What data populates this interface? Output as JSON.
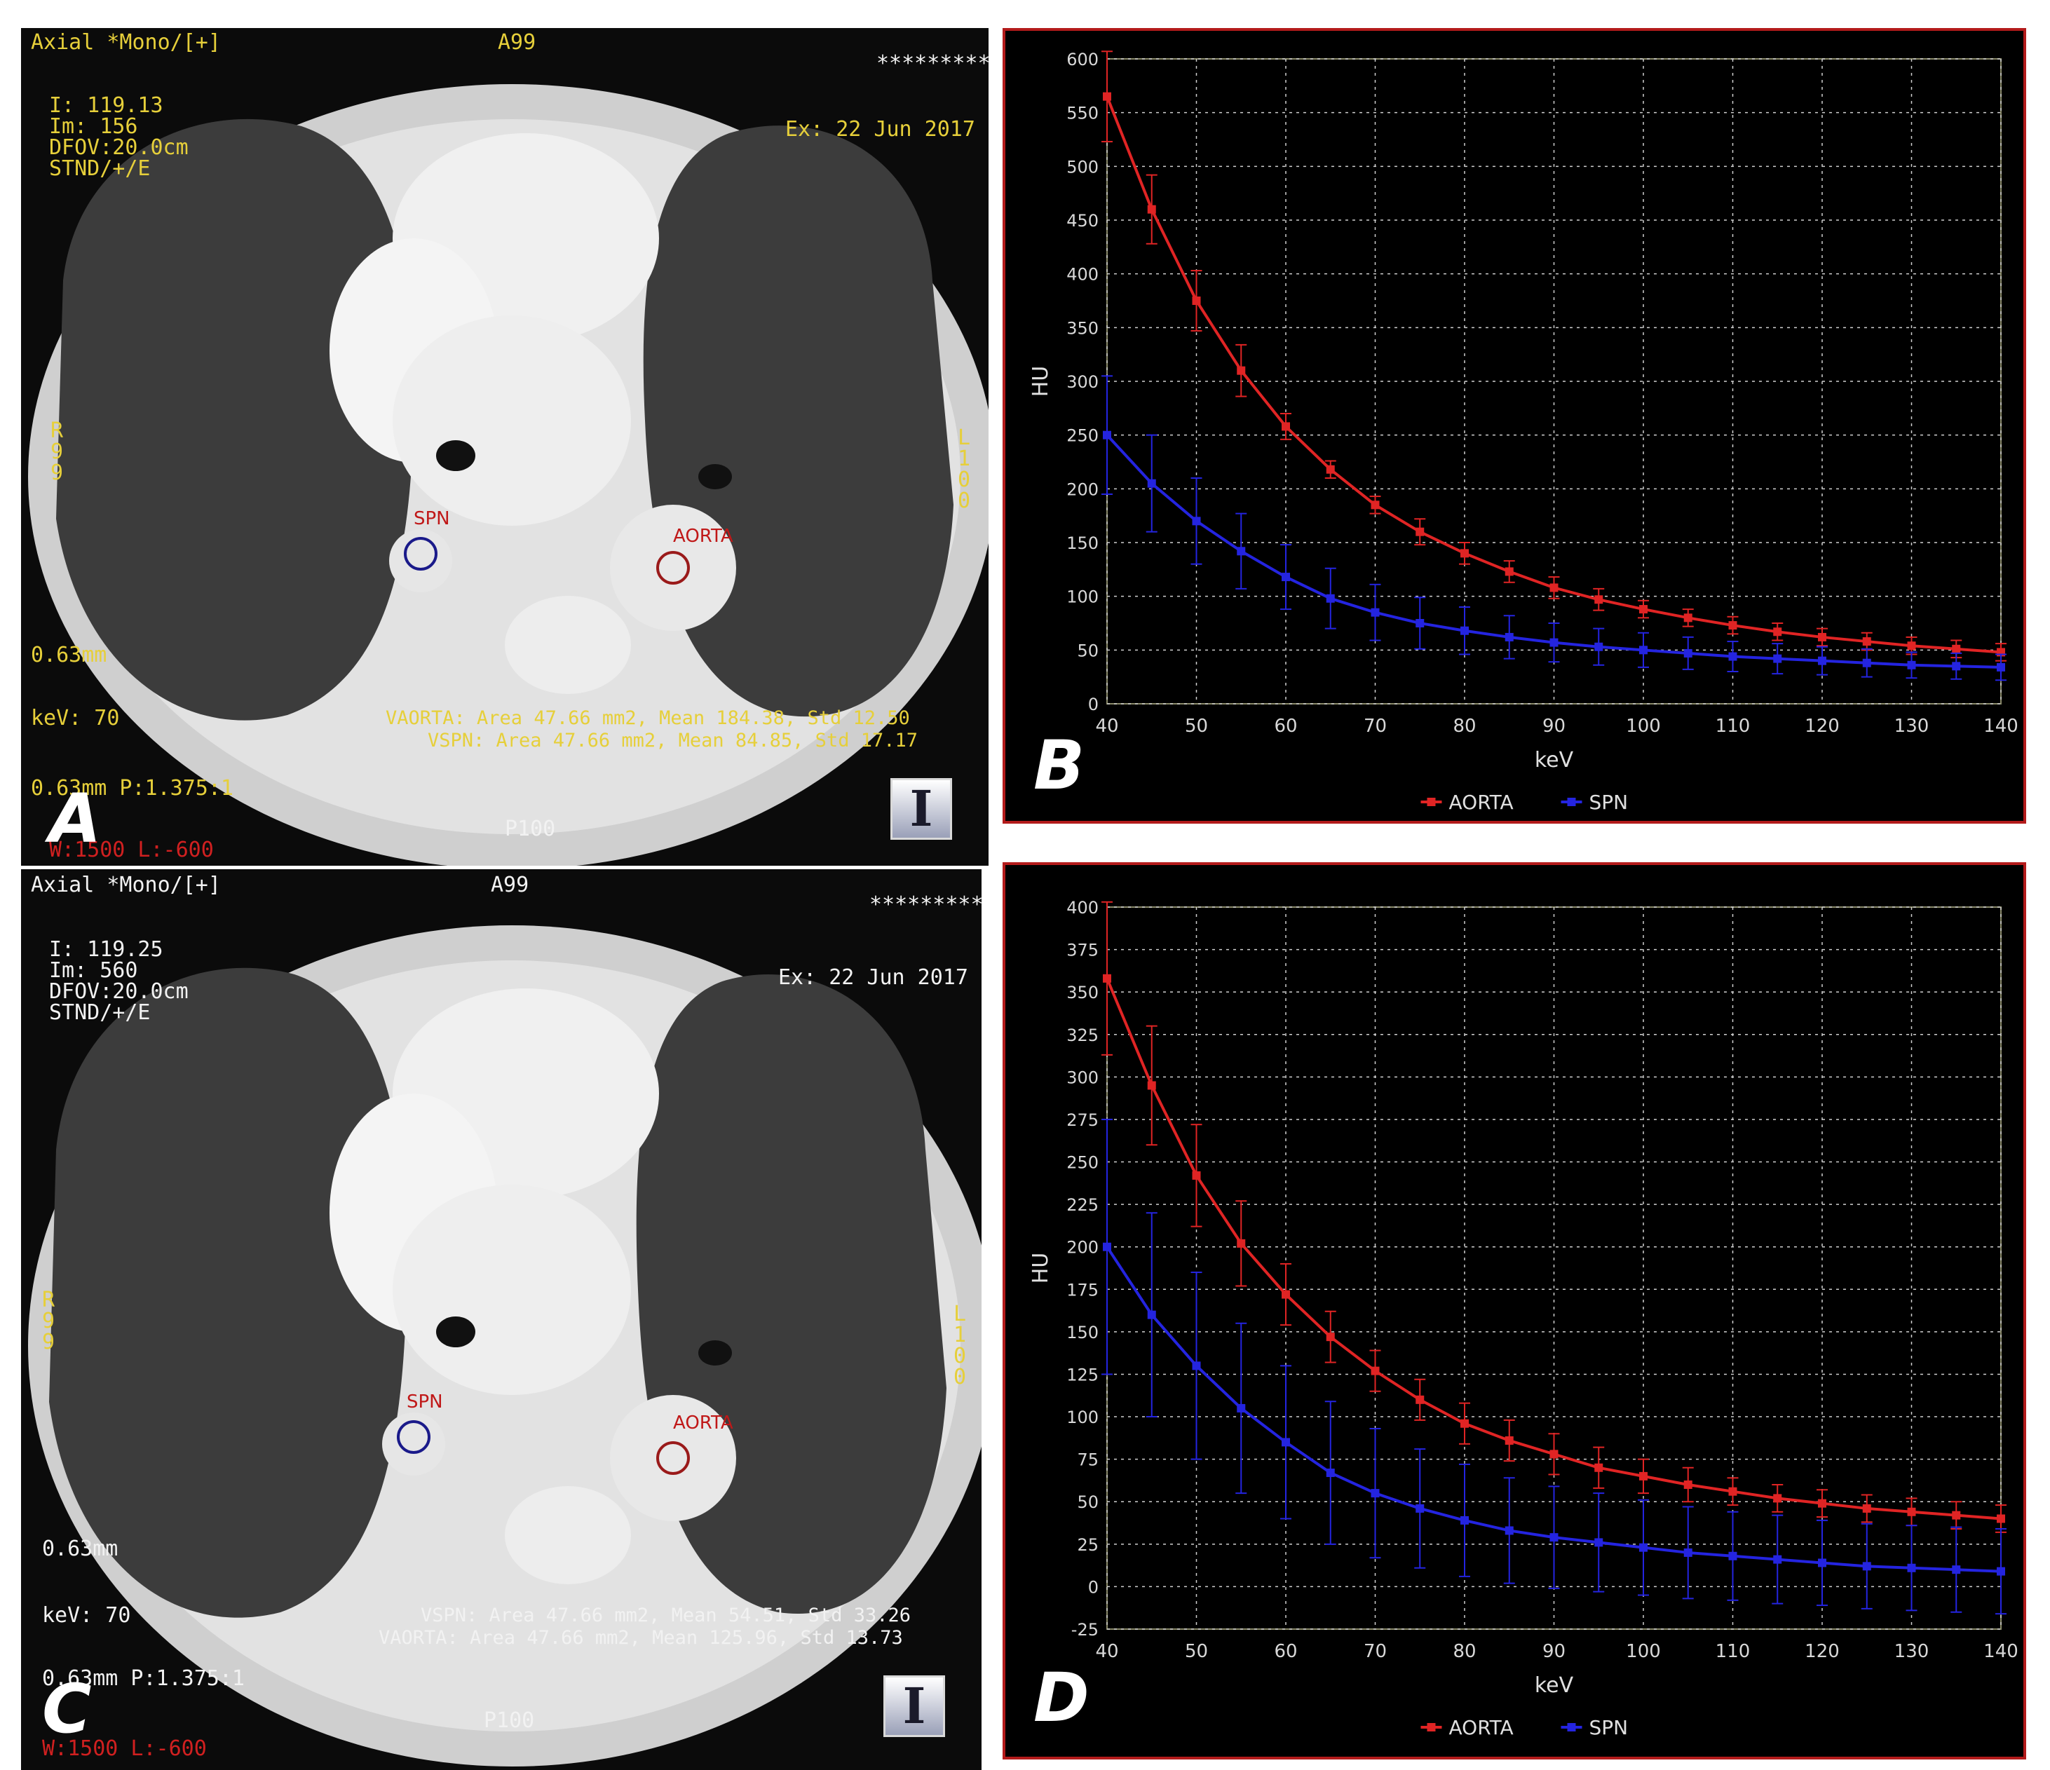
{
  "ct_panels": [
    {
      "letter": "A",
      "header_left": "Axial *Mono/[+]",
      "header_center": "A99",
      "header_right": "*********",
      "info_lines": [
        "I: 119.13",
        "Im: 156",
        "DFOV:20.0cm",
        "STND/+/E"
      ],
      "exam_date": "Ex: 22 Jun 2017",
      "left_side": "R\n9\n9",
      "right_side": "L\n1\n0\n0",
      "thickness": "0.63mm",
      "kev": "keV: 70",
      "measure_1": "VAORTA: Area 47.66 mm2, Mean 184.38, Std 12.50",
      "measure_2": "VSPN: Area 47.66 mm2, Mean 84.85, Std 17.17",
      "pitch": "0.63mm P:1.375:1",
      "window": "W:1500 L:-600",
      "bottom_center": "P100",
      "roi_spn": "SPN",
      "roi_aorta": "AORTA"
    },
    {
      "letter": "C",
      "header_left": "Axial *Mono/[+]",
      "header_center": "A99",
      "header_right": "*********",
      "info_lines": [
        "I: 119.25",
        "Im: 560",
        "DFOV:20.0cm",
        "STND/+/E"
      ],
      "exam_date": "Ex: 22 Jun 2017",
      "left_side": "R\n9\n9",
      "right_side": "L\n1\n0\n0",
      "thickness": "0.63mm",
      "kev": "keV: 70",
      "measure_1": "VSPN: Area 47.66 mm2, Mean 54.51, Std 33.26",
      "measure_2": "VAORTA: Area 47.66 mm2, Mean 125.96, Std 13.73",
      "pitch": "0.63mm P:1.375:1",
      "window": "W:1500 L:-600",
      "bottom_center": "P100",
      "roi_spn": "SPN",
      "roi_aorta": "AORTA"
    }
  ],
  "colors": {
    "aorta": "#e02424",
    "spn": "#2424e0",
    "frame": "#b31b1b",
    "overlay": "#e6cf3a"
  },
  "chart_data": [
    {
      "type": "line",
      "panel": "B",
      "xlabel": "keV",
      "ylabel": "HU",
      "xlim": [
        40,
        140
      ],
      "ylim": [
        0,
        600
      ],
      "xticks": [
        40,
        50,
        60,
        70,
        80,
        90,
        100,
        110,
        120,
        130,
        140
      ],
      "yticks": [
        0,
        50,
        100,
        150,
        200,
        250,
        300,
        350,
        400,
        450,
        500,
        550,
        600
      ],
      "grid": true,
      "legend": "bottom-center",
      "x": [
        40,
        45,
        50,
        55,
        60,
        65,
        70,
        75,
        80,
        85,
        90,
        95,
        100,
        105,
        110,
        115,
        120,
        125,
        130,
        135,
        140
      ],
      "series": [
        {
          "name": "AORTA",
          "color": "#e02424",
          "values": [
            565,
            460,
            375,
            310,
            258,
            218,
            185,
            160,
            140,
            123,
            108,
            97,
            88,
            80,
            73,
            67,
            62,
            58,
            54,
            51,
            48
          ],
          "errors": [
            42,
            32,
            28,
            24,
            12,
            8,
            8,
            12,
            10,
            10,
            10,
            10,
            8,
            8,
            8,
            8,
            8,
            8,
            8,
            8,
            8
          ]
        },
        {
          "name": "SPN",
          "color": "#2424e0",
          "values": [
            250,
            205,
            170,
            142,
            118,
            98,
            85,
            75,
            68,
            62,
            57,
            53,
            50,
            47,
            44,
            42,
            40,
            38,
            36,
            35,
            34
          ],
          "errors": [
            55,
            45,
            40,
            35,
            30,
            28,
            26,
            24,
            22,
            20,
            18,
            17,
            16,
            15,
            14,
            14,
            13,
            13,
            12,
            12,
            12
          ]
        }
      ]
    },
    {
      "type": "line",
      "panel": "D",
      "xlabel": "keV",
      "ylabel": "HU",
      "xlim": [
        40,
        140
      ],
      "ylim": [
        -25,
        400
      ],
      "xticks": [
        40,
        50,
        60,
        70,
        80,
        90,
        100,
        110,
        120,
        130,
        140
      ],
      "yticks": [
        -25,
        0,
        25,
        50,
        75,
        100,
        125,
        150,
        175,
        200,
        225,
        250,
        275,
        300,
        325,
        350,
        375,
        400
      ],
      "grid": true,
      "legend": "bottom-center",
      "x": [
        40,
        45,
        50,
        55,
        60,
        65,
        70,
        75,
        80,
        85,
        90,
        95,
        100,
        105,
        110,
        115,
        120,
        125,
        130,
        135,
        140
      ],
      "series": [
        {
          "name": "AORTA",
          "color": "#e02424",
          "values": [
            358,
            295,
            242,
            202,
            172,
            147,
            127,
            110,
            96,
            86,
            78,
            70,
            65,
            60,
            56,
            52,
            49,
            46,
            44,
            42,
            40
          ],
          "errors": [
            45,
            35,
            30,
            25,
            18,
            15,
            12,
            12,
            12,
            12,
            12,
            12,
            10,
            10,
            8,
            8,
            8,
            8,
            8,
            8,
            8
          ]
        },
        {
          "name": "SPN",
          "color": "#2424e0",
          "values": [
            200,
            160,
            130,
            105,
            85,
            67,
            55,
            46,
            39,
            33,
            29,
            26,
            23,
            20,
            18,
            16,
            14,
            12,
            11,
            10,
            9
          ],
          "errors": [
            75,
            60,
            55,
            50,
            45,
            42,
            38,
            35,
            33,
            31,
            30,
            29,
            28,
            27,
            26,
            26,
            25,
            25,
            25,
            25,
            25
          ]
        }
      ]
    }
  ]
}
